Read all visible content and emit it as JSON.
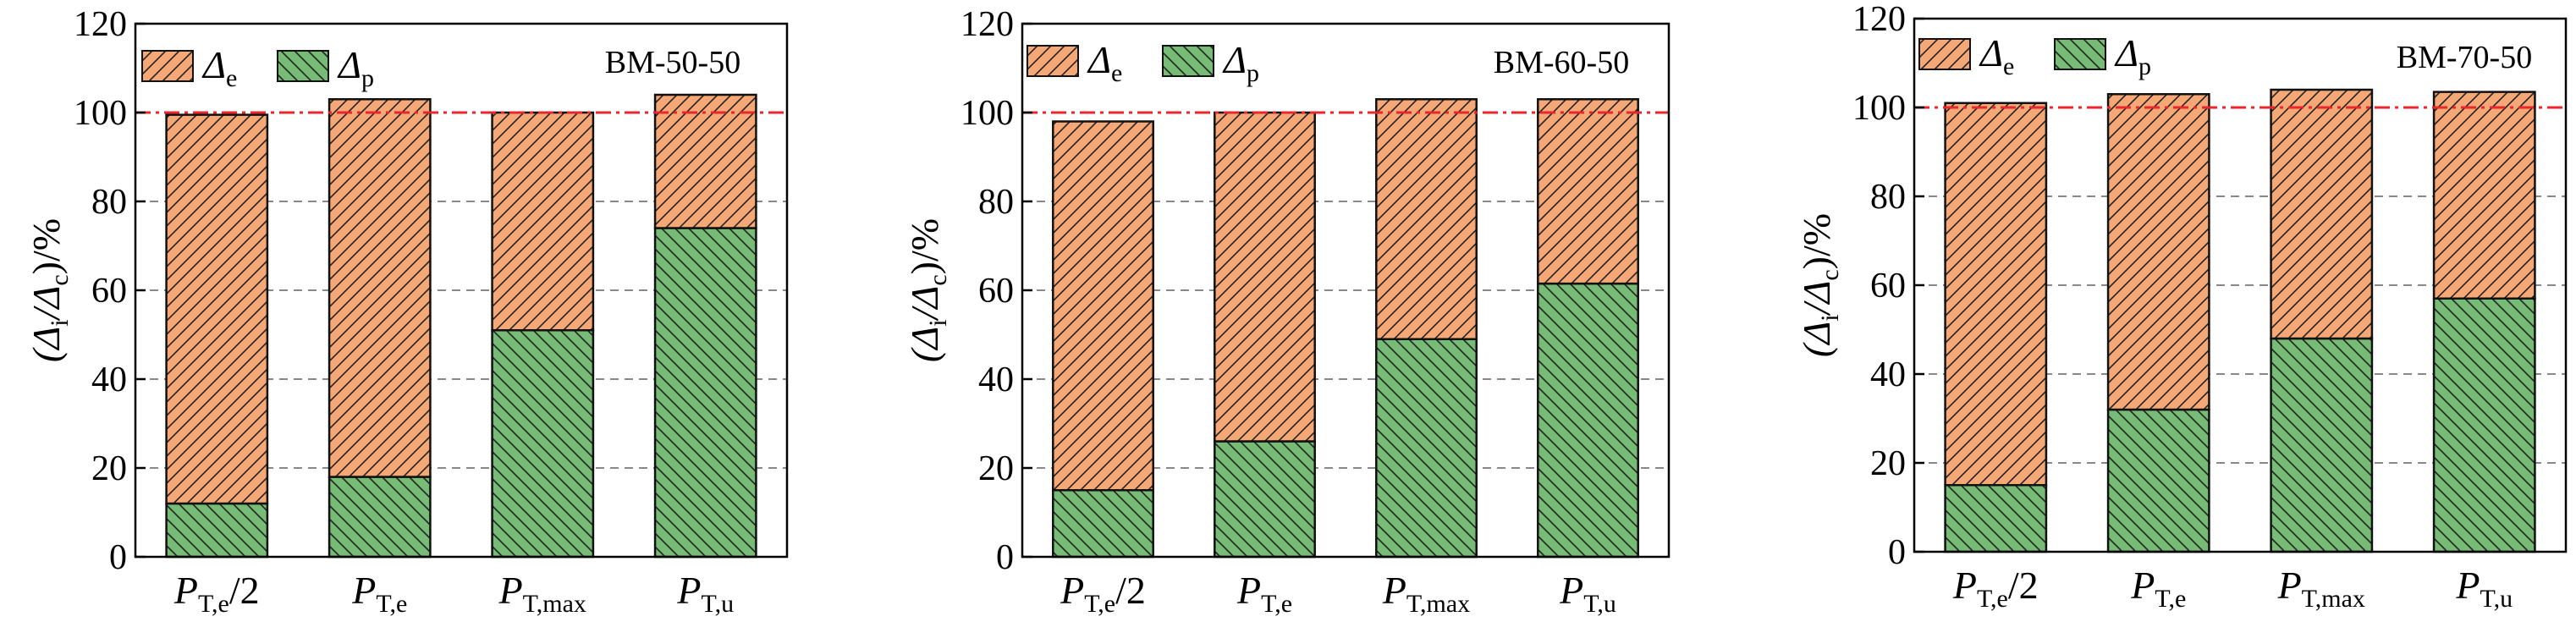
{
  "chart_data": [
    {
      "type": "bar",
      "stacked": true,
      "title": "BM-50-50",
      "categories": [
        {
          "main": "P",
          "sub": "T,e",
          "suffix": "/2"
        },
        {
          "main": "P",
          "sub": "T,e",
          "suffix": ""
        },
        {
          "main": "P",
          "sub": "T,max",
          "suffix": ""
        },
        {
          "main": "P",
          "sub": "T,u",
          "suffix": ""
        }
      ],
      "series": [
        {
          "name": "Δ",
          "sub": "p",
          "values": [
            12,
            18,
            51,
            74
          ]
        },
        {
          "name": "Δ",
          "sub": "e",
          "values": [
            87.5,
            85,
            49,
            30
          ]
        }
      ],
      "ylabel": {
        "pre": "(Δ",
        "sub1": "i",
        "mid": "/Δ",
        "sub2": "c",
        "post": ")/%"
      },
      "ylim": [
        0,
        120
      ],
      "yticks": [
        0,
        20,
        40,
        60,
        80,
        100,
        120
      ],
      "reference_line": 100,
      "grid": "dashed at 20, 40, 60, 80",
      "legend": "top-left"
    },
    {
      "type": "bar",
      "stacked": true,
      "title": "BM-60-50",
      "categories": [
        {
          "main": "P",
          "sub": "T,e",
          "suffix": "/2"
        },
        {
          "main": "P",
          "sub": "T,e",
          "suffix": ""
        },
        {
          "main": "P",
          "sub": "T,max",
          "suffix": ""
        },
        {
          "main": "P",
          "sub": "T,u",
          "suffix": ""
        }
      ],
      "series": [
        {
          "name": "Δ",
          "sub": "p",
          "values": [
            15,
            26,
            49,
            61.5
          ]
        },
        {
          "name": "Δ",
          "sub": "e",
          "values": [
            83,
            74,
            54,
            41.5
          ]
        }
      ],
      "ylabel": {
        "pre": "(Δ",
        "sub1": "i",
        "mid": "/Δ",
        "sub2": "c",
        "post": ")/%"
      },
      "ylim": [
        0,
        120
      ],
      "yticks": [
        0,
        20,
        40,
        60,
        80,
        100,
        120
      ],
      "reference_line": 100,
      "grid": "dashed at 20, 40, 60, 80",
      "legend": "top-left"
    },
    {
      "type": "bar",
      "stacked": true,
      "title": "BM-70-50",
      "categories": [
        {
          "main": "P",
          "sub": "T,e",
          "suffix": "/2"
        },
        {
          "main": "P",
          "sub": "T,e",
          "suffix": ""
        },
        {
          "main": "P",
          "sub": "T,max",
          "suffix": ""
        },
        {
          "main": "P",
          "sub": "T,u",
          "suffix": ""
        }
      ],
      "series": [
        {
          "name": "Δ",
          "sub": "p",
          "values": [
            15,
            32,
            48,
            57
          ]
        },
        {
          "name": "Δ",
          "sub": "e",
          "values": [
            86,
            71,
            56,
            46.5
          ]
        }
      ],
      "ylabel": {
        "pre": "(Δ",
        "sub1": "i",
        "mid": "/Δ",
        "sub2": "c",
        "post": ")/%"
      },
      "ylim": [
        0,
        120
      ],
      "yticks": [
        0,
        20,
        40,
        60,
        80,
        100,
        120
      ],
      "reference_line": 100,
      "grid": "dashed at 20, 40, 60, 80",
      "legend": "top-left"
    }
  ],
  "colors": {
    "elastic_fill": "#f5a876",
    "plastic_fill": "#76bb76",
    "hatch": "#222222",
    "reference_line": "#e8262b",
    "grid": "#888888",
    "axis": "#000000"
  }
}
